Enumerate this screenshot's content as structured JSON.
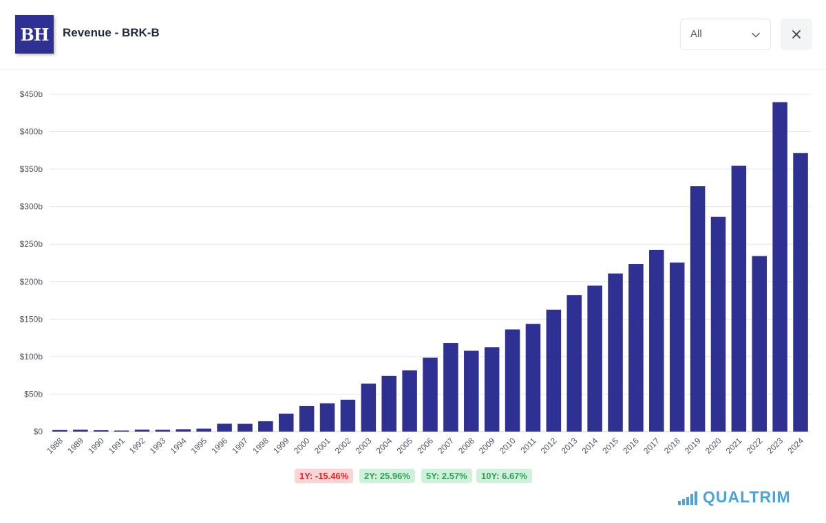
{
  "header": {
    "logo_text": "BH",
    "title": "Revenue - BRK-B",
    "range_select": {
      "value": "All",
      "options": [
        "All"
      ]
    },
    "close_icon": "close-icon"
  },
  "chart_data": {
    "type": "bar",
    "title": "",
    "xlabel": "",
    "ylabel": "",
    "ylim": [
      0,
      450
    ],
    "y_ticks": [
      0,
      50,
      100,
      150,
      200,
      250,
      300,
      350,
      400,
      450
    ],
    "y_tick_labels": [
      "$0",
      "$50b",
      "$100b",
      "$150b",
      "$200b",
      "$250b",
      "$300b",
      "$350b",
      "$400b",
      "$450b"
    ],
    "grid": true,
    "bar_color": "#2e3192",
    "categories": [
      "1988",
      "1989",
      "1990",
      "1991",
      "1992",
      "1993",
      "1994",
      "1995",
      "1996",
      "1997",
      "1998",
      "1999",
      "2000",
      "2001",
      "2002",
      "2003",
      "2004",
      "2005",
      "2006",
      "2007",
      "2008",
      "2009",
      "2010",
      "2011",
      "2012",
      "2013",
      "2014",
      "2015",
      "2016",
      "2017",
      "2018",
      "2019",
      "2020",
      "2021",
      "2022",
      "2023",
      "2024"
    ],
    "values": [
      2.1,
      2.5,
      1.8,
      1.4,
      2.6,
      2.4,
      3.2,
      4.0,
      10.5,
      10.4,
      13.8,
      24.0,
      34.0,
      37.7,
      42.4,
      63.9,
      74.4,
      81.7,
      98.5,
      118.2,
      107.8,
      112.5,
      136.2,
      143.7,
      162.5,
      182.2,
      194.7,
      210.8,
      223.6,
      242.1,
      225.4,
      327.2,
      286.3,
      354.6,
      234.1,
      439.3,
      371.4
    ]
  },
  "growth_badges": [
    {
      "label": "1Y: -15.46%",
      "sentiment": "negative"
    },
    {
      "label": "2Y: 25.96%",
      "sentiment": "positive"
    },
    {
      "label": "5Y: 2.57%",
      "sentiment": "positive"
    },
    {
      "label": "10Y: 6.67%",
      "sentiment": "positive"
    }
  ],
  "brand": {
    "name": "QUALTRIM",
    "icon": "bar-chart-icon",
    "color": "#4aa3df"
  }
}
